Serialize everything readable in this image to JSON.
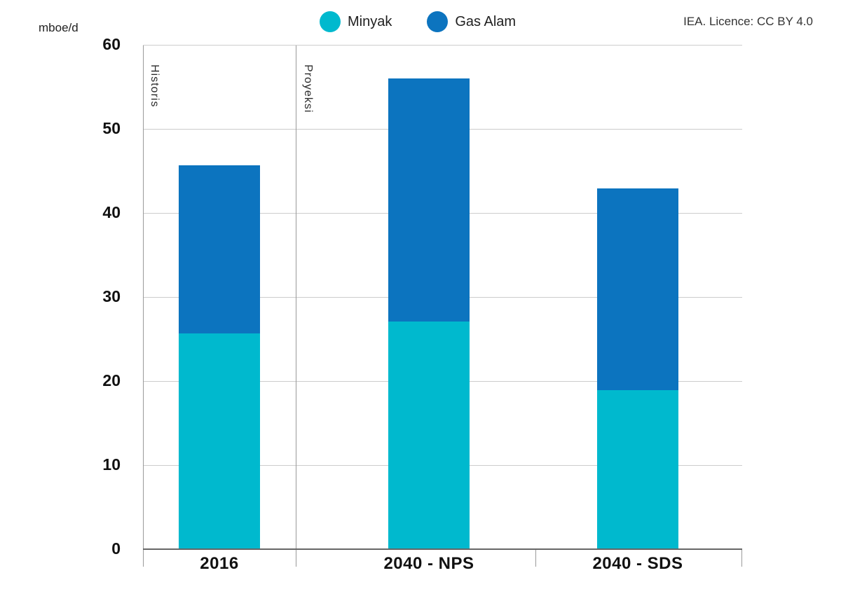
{
  "meta": {
    "unit_label": "mboe/d",
    "attribution": "IEA. Licence: CC BY 4.0"
  },
  "legend": [
    {
      "label": "Minyak",
      "color": "#00b9ce"
    },
    {
      "label": "Gas Alam",
      "color": "#0c74bf"
    }
  ],
  "sections": [
    {
      "label": "Historis"
    },
    {
      "label": "Proyeksi"
    }
  ],
  "chart_data": {
    "type": "bar",
    "stacked": true,
    "title": "",
    "ylabel": "mboe/d",
    "xlabel": "",
    "ylim": [
      0,
      60
    ],
    "yticks": [
      0,
      10,
      20,
      30,
      40,
      50,
      60
    ],
    "grid": true,
    "legend_position": "top",
    "categories": [
      "2016",
      "2040 - NPS",
      "2040 - SDS"
    ],
    "series": [
      {
        "name": "Minyak",
        "color": "#00b9ce",
        "values": [
          25.7,
          27.1,
          18.9
        ]
      },
      {
        "name": "Gas Alam",
        "color": "#0c74bf",
        "values": [
          20.0,
          28.9,
          24.0
        ]
      }
    ],
    "totals": [
      45.7,
      56.0,
      42.9
    ],
    "colors": {
      "gridline": "#cccccc",
      "axis_line": "#9a9a9a",
      "baseline": "#666666",
      "text": "#111111"
    }
  }
}
